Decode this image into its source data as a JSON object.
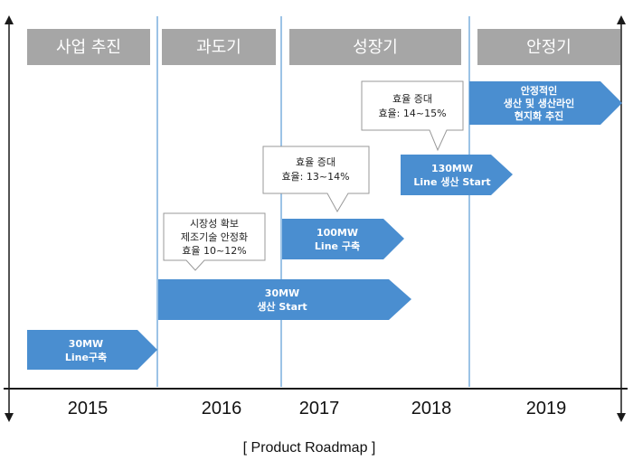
{
  "phases": [
    {
      "label": "사업 추진"
    },
    {
      "label": "과도기"
    },
    {
      "label": "성장기"
    },
    {
      "label": "안정기"
    }
  ],
  "years": [
    "2015",
    "2016",
    "2017",
    "2018",
    "2019"
  ],
  "arrows": [
    {
      "line1": "30MW",
      "line2": "Line구축"
    },
    {
      "line1": "30MW",
      "line2": "생산 Start"
    },
    {
      "line1": "100MW",
      "line2": "Line 구축"
    },
    {
      "line1": "130MW",
      "line2": "Line 생산 Start"
    },
    {
      "line1": "안정적인",
      "line2": "생산 및 생산라인",
      "line3": "현지화 추진"
    }
  ],
  "callouts": [
    {
      "line1": "시장성 확보",
      "line2": "제조기술 안정화",
      "line3": "효율 10~12%"
    },
    {
      "line1": "효율 증대",
      "line2": "효율: 13~14%"
    },
    {
      "line1": "효율 증대",
      "line2": "효율: 14~15%"
    }
  ],
  "caption": "[ Product Roadmap ]",
  "colors": {
    "phase_fill": "#a6a6a6",
    "arrow_fill": "#4a8ed0",
    "divider": "#5b9bd5",
    "axis": "#1a1a1a",
    "callout_border": "#999999"
  }
}
